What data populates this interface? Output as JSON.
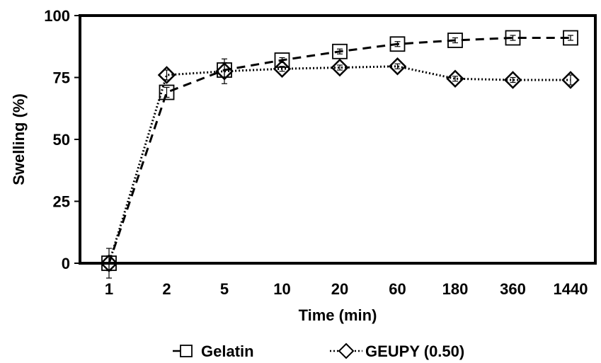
{
  "chart_data": {
    "type": "line",
    "categories": [
      "1",
      "2",
      "5",
      "10",
      "20",
      "60",
      "180",
      "360",
      "1440"
    ],
    "xlabel": "Time (min)",
    "ylabel": "Swelling (%)",
    "ylim": [
      0,
      100
    ],
    "yticks": [
      0,
      25,
      50,
      75,
      100
    ],
    "grid": false,
    "legend_position": "bottom",
    "series": [
      {
        "name": "Gelatin",
        "marker": "square",
        "line_style": "dashed",
        "color": "#000000",
        "values": [
          0,
          69,
          78,
          82,
          85.5,
          88.5,
          90,
          91,
          91
        ],
        "errors": [
          3,
          2,
          3,
          1,
          1,
          1,
          1,
          1,
          1
        ]
      },
      {
        "name": "GEUPY (0.50)",
        "marker": "diamond",
        "line_style": "dotted",
        "color": "#000000",
        "values": [
          0,
          76,
          77.5,
          78.5,
          79,
          79.5,
          74.5,
          74,
          74
        ],
        "errors": [
          6,
          2,
          5,
          1,
          1,
          1,
          1,
          1,
          2
        ]
      }
    ]
  }
}
